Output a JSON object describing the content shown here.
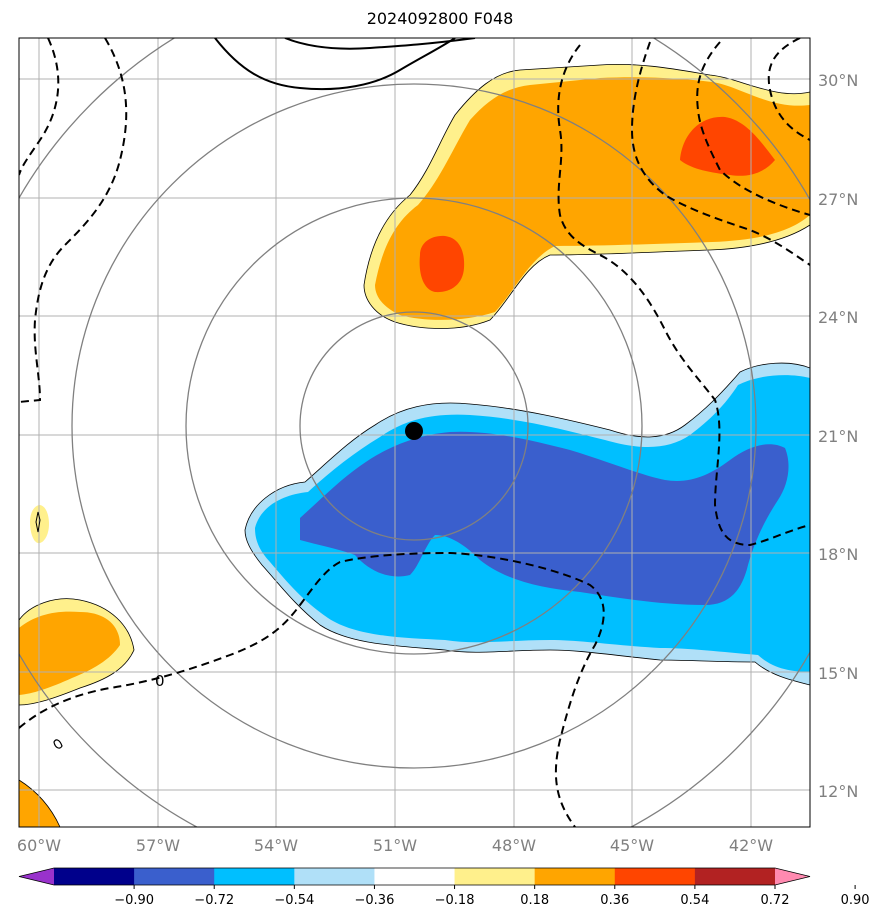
{
  "title": "2024092800 F048",
  "map": {
    "lon_range": [
      -61,
      -40
    ],
    "lat_range": [
      11,
      31
    ],
    "x_ticks": [
      "60°W",
      "57°W",
      "54°W",
      "51°W",
      "48°W",
      "45°W",
      "42°W"
    ],
    "y_ticks": [
      "12°N",
      "15°N",
      "18°N",
      "21°N",
      "24°N",
      "27°N",
      "30°N"
    ],
    "storm_center": {
      "lon": -50.6,
      "lat": 21.1
    },
    "contour_label": "0",
    "colors": {
      "blue_dark": "#3a5fcd",
      "blue_mid": "#00bfff",
      "blue_light": "#b0e0f8",
      "yellow": "#fff08c",
      "orange": "#ffa500",
      "red_orange": "#ff4500"
    }
  },
  "colorbar": {
    "labels": [
      "−0.90",
      "−0.72",
      "−0.54",
      "−0.36",
      "−0.18",
      "0.18",
      "0.36",
      "0.54",
      "0.72",
      "0.90"
    ],
    "colors": [
      "#9932cc",
      "#00008b",
      "#3a5fcd",
      "#00bfff",
      "#b0e0f8",
      "#ffffff",
      "#fff08c",
      "#ffa500",
      "#ff4500",
      "#b22222",
      "#ff8ab0"
    ]
  }
}
